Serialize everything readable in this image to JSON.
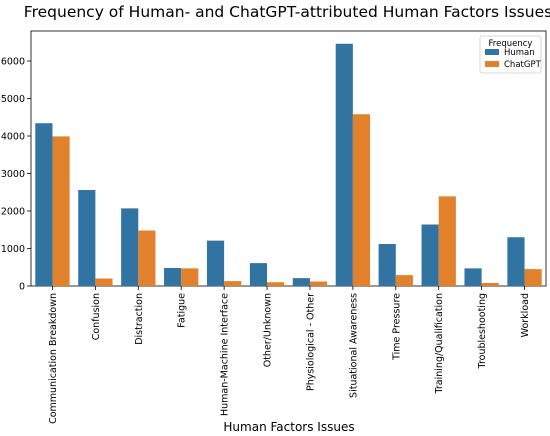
{
  "chart_data": {
    "type": "bar",
    "title": "Frequency of Human- and ChatGPT-attributed Human Factors Issues",
    "xlabel": "Human Factors Issues",
    "ylabel": "",
    "ylim": [
      0,
      6800
    ],
    "yticks": [
      0,
      1000,
      2000,
      3000,
      4000,
      5000,
      6000
    ],
    "grid": false,
    "legend": {
      "title": "Frequency",
      "placement": "top-right"
    },
    "categories": [
      "Communication Breakdown",
      "Confusion",
      "Distraction",
      "Fatigue",
      "Human-Machine Interface",
      "Other/Unknown",
      "Physiological - Other",
      "Situational Awareness",
      "Time Pressure",
      "Training/Qualification",
      "Troubleshooting",
      "Workload"
    ],
    "series": [
      {
        "name": "Human",
        "color": "#3274a1",
        "values": [
          4340,
          2560,
          2070,
          480,
          1210,
          610,
          210,
          6460,
          1120,
          1640,
          470,
          1300
        ]
      },
      {
        "name": "ChatGPT",
        "color": "#e1812c",
        "values": [
          3990,
          200,
          1480,
          470,
          130,
          100,
          120,
          4580,
          290,
          2390,
          80,
          450
        ]
      }
    ]
  }
}
